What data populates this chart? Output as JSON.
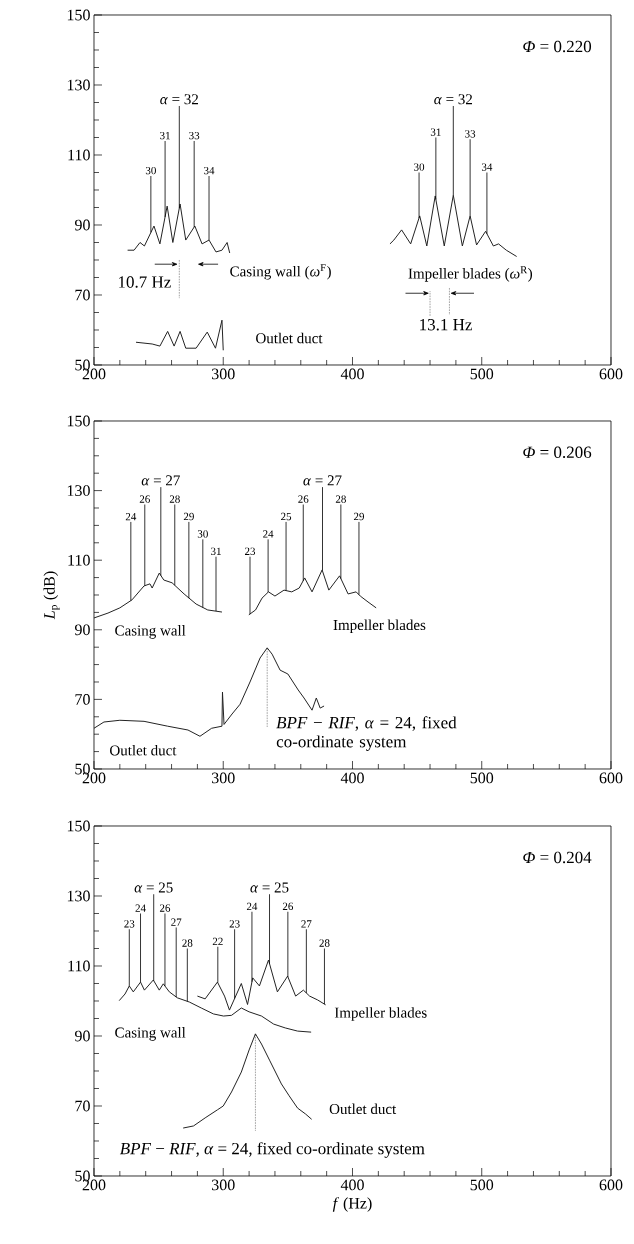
{
  "chart_data": [
    {
      "type": "line",
      "xlim": [
        200,
        600
      ],
      "ylim": [
        50,
        150
      ],
      "xticks": [
        200,
        300,
        400,
        500,
        600
      ],
      "yticks": [
        50,
        70,
        90,
        110,
        130,
        150
      ],
      "series": [
        {
          "name": "Casing wall (*ω*$^{F}$)",
          "color": "#222222",
          "x": [
            226,
            231,
            235.6,
            239,
            246.4,
            251,
            256.6,
            261,
            266.6,
            271,
            278,
            283.6,
            289,
            294.4,
            299,
            303,
            305
          ],
          "values": [
            82.8,
            82.8,
            85,
            84,
            89.7,
            84.6,
            95.4,
            85,
            96,
            85.7,
            89.7,
            84.6,
            85.7,
            82.3,
            82.8,
            85,
            82
          ]
        },
        {
          "name": "Impeller blades (*ω*$^{R}$)",
          "color": "#222222",
          "x": [
            429,
            432,
            438,
            445,
            452,
            457.5,
            464,
            471,
            478,
            485,
            491,
            496,
            503,
            509,
            513,
            519,
            527
          ],
          "values": [
            84.6,
            85.7,
            88.6,
            84.6,
            92.6,
            84,
            98.3,
            84,
            98.5,
            84,
            92.6,
            84.3,
            88.2,
            84,
            84.6,
            82.8,
            81
          ]
        },
        {
          "name": "Outlet duct",
          "color": "#222222",
          "x": [
            232.5,
            245,
            251,
            257,
            262,
            266.6,
            271,
            279,
            287.6,
            294,
            299,
            300
          ],
          "values": [
            56.5,
            56,
            55.4,
            59.6,
            55.4,
            59.6,
            54.8,
            54.8,
            59.4,
            54.8,
            62.8,
            54.2
          ]
        }
      ],
      "annotations": [
        {
          "text": "30",
          "x": 244,
          "y": 87.9
        },
        {
          "text": "31",
          "x": 255,
          "y": 92.3
        },
        {
          "text": "*α* = 32",
          "x": 266,
          "y": 94.8
        },
        {
          "text": "33",
          "x": 277.5,
          "y": 89.4
        },
        {
          "text": "34",
          "x": 289,
          "y": 85.7
        },
        {
          "text": "30",
          "x": 451.5,
          "y": 92
        },
        {
          "text": "31",
          "x": 464.5,
          "y": 97.3
        },
        {
          "text": "*α* = 32",
          "x": 478,
          "y": 98.5
        },
        {
          "text": "33",
          "x": 491,
          "y": 92.6
        },
        {
          "text": "34",
          "x": 504,
          "y": 87.5
        },
        "*Φ* = 0.220",
        "10.7 Hz",
        "13.1 Hz"
      ]
    },
    {
      "type": "line",
      "xlim": [
        200,
        600
      ],
      "ylim": [
        50,
        150
      ],
      "xticks": [
        200,
        300,
        400,
        500,
        600
      ],
      "yticks": [
        50,
        70,
        90,
        110,
        130,
        150
      ],
      "ylabel": "*L*$_{p}$ (dB)",
      "series": [
        {
          "name": "Casing wall",
          "color": "#222222",
          "x": [
            200,
            210.8,
            220,
            229.4,
            238.7,
            243.3,
            245,
            250.5,
            254,
            260.4,
            269.7,
            279,
            288,
            299
          ],
          "values": [
            93.4,
            94.8,
            96.3,
            98.6,
            102.6,
            103.2,
            102,
            106.3,
            104.3,
            103.5,
            100.3,
            97.4,
            95.7,
            95.1
          ]
        },
        {
          "name": "Impeller blades",
          "color": "#222222",
          "x": [
            319.8,
            325,
            330,
            335,
            340,
            347,
            353,
            358.8,
            363,
            368.7,
            376.5,
            381.7,
            390,
            396.6,
            402.8,
            406,
            412,
            418.3
          ],
          "values": [
            94.3,
            95.7,
            99.1,
            100.9,
            99.7,
            101.4,
            100.9,
            102,
            104.9,
            100.9,
            107.2,
            101.4,
            105.5,
            100.3,
            100.9,
            99.7,
            98,
            96.3
          ]
        },
        {
          "name": "Outlet duct",
          "color": "#222222",
          "x": [
            200,
            207.7,
            220,
            238.7,
            257,
            272.7,
            282,
            291,
            299,
            299.4,
            300.6,
            306.8,
            313,
            320.7,
            328.5,
            334,
            337.8,
            344,
            350,
            358,
            362.5,
            368.7,
            372,
            375,
            378
          ],
          "values": [
            61.7,
            63.5,
            64,
            63.7,
            62.3,
            61.2,
            59.4,
            61.7,
            62.3,
            72.1,
            62.8,
            65.8,
            68.6,
            75,
            81.9,
            84.8,
            83,
            78.4,
            77.3,
            72.7,
            70.4,
            66.9,
            70.4,
            67.5,
            68.1
          ]
        }
      ],
      "annotations": [
        {
          "text": "24",
          "x": 228.5,
          "y": 98.4
        },
        {
          "text": "26",
          "x": 239.3,
          "y": 102.7
        },
        {
          "text": "*α* = 27",
          "x": 251.7,
          "y": 105.6
        },
        {
          "text": "28",
          "x": 262.5,
          "y": 102.8
        },
        {
          "text": "29",
          "x": 273.4,
          "y": 99.1
        },
        {
          "text": "30",
          "x": 284.2,
          "y": 96.4
        },
        {
          "text": "31",
          "x": 294.4,
          "y": 95.4
        },
        {
          "text": "23",
          "x": 320.7,
          "y": 94.5
        },
        {
          "text": "24",
          "x": 334.7,
          "y": 100.8
        },
        {
          "text": "25",
          "x": 348.6,
          "y": 101.3
        },
        {
          "text": "26",
          "x": 361.9,
          "y": 104.1
        },
        {
          "text": "*α* = 27",
          "x": 376.8,
          "y": 107.1
        },
        {
          "text": "28",
          "x": 391,
          "y": 104.7
        },
        {
          "text": "29",
          "x": 405,
          "y": 100.1
        },
        "*Φ* = 0.206",
        {
          "text": "*BPF* − *RIF*, *α* = 24, fixed co-ordinate system",
          "x": 334,
          "y": 84.8
        }
      ]
    },
    {
      "type": "line",
      "xlim": [
        200,
        600
      ],
      "ylim": [
        50,
        150
      ],
      "xticks": [
        200,
        300,
        400,
        500,
        600
      ],
      "yticks": [
        50,
        70,
        90,
        110,
        130,
        150
      ],
      "xlabel": "*f* (Hz)",
      "series": [
        {
          "name": "Casing wall",
          "color": "#222222",
          "x": [
            219.5,
            224,
            227.3,
            230.4,
            236,
            239,
            245.9,
            250.5,
            253.6,
            258.3,
            264.5,
            273.8,
            283,
            292.4,
            300.2,
            306.4,
            314,
            320,
            329.6,
            339,
            348,
            357.5,
            368
          ],
          "values": [
            100.1,
            102,
            104.3,
            102.6,
            105.4,
            103.1,
            106,
            103.1,
            104.9,
            102.6,
            100.9,
            99.7,
            98,
            96.3,
            95.7,
            95.9,
            98,
            96.9,
            95.7,
            93.4,
            92.3,
            91.4,
            91.1
          ]
        },
        {
          "name": "Impeller blades",
          "color": "#222222",
          "x": [
            280,
            286,
            295.5,
            301,
            304.8,
            314,
            318.8,
            322.8,
            328,
            335,
            341.9,
            349.8,
            356,
            362,
            366.8,
            373,
            379.2
          ],
          "values": [
            101.4,
            100.6,
            105.4,
            101.4,
            97.4,
            105,
            99,
            106.6,
            104.3,
            111.7,
            102.6,
            107.1,
            101.4,
            103.1,
            101.4,
            100.3,
            98.9
          ]
        },
        {
          "name": "Outlet duct",
          "color": "#222222",
          "x": [
            269,
            277,
            286,
            295.5,
            300,
            306.4,
            314,
            320,
            324.9,
            329.6,
            335.8,
            345,
            351,
            357.5,
            363.7,
            368.4
          ],
          "values": [
            63.7,
            64.3,
            66.6,
            68.9,
            70,
            74,
            79.7,
            86,
            90.6,
            87.7,
            83.1,
            76.3,
            72.9,
            69.4,
            67.7,
            66.2
          ]
        }
      ],
      "annotations": [
        {
          "text": "23",
          "x": 227.3,
          "y": 104.3
        },
        {
          "text": "24",
          "x": 236,
          "y": 105.4
        },
        {
          "text": "*α* = 25",
          "x": 246.2,
          "y": 105.8
        },
        {
          "text": "26",
          "x": 254.9,
          "y": 104.3
        },
        {
          "text": "27",
          "x": 263.6,
          "y": 101.1
        },
        {
          "text": "28",
          "x": 272.2,
          "y": 99.9
        },
        {
          "text": "22",
          "x": 295.8,
          "y": 105.3
        },
        {
          "text": "23",
          "x": 308.8,
          "y": 100.7
        },
        {
          "text": "24",
          "x": 322.2,
          "y": 105.5
        },
        {
          "text": "*α* = 25",
          "x": 335.8,
          "y": 110.6
        },
        {
          "text": "26",
          "x": 350,
          "y": 106.9
        },
        {
          "text": "27",
          "x": 364.3,
          "y": 102.3
        },
        {
          "text": "28",
          "x": 378.3,
          "y": 99.1
        },
        "*Φ* = 0.204",
        {
          "text": "*BPF* − *RIF*, *α* = 24, fixed co-ordinate system",
          "x": 324.9,
          "y": 90.6
        }
      ]
    }
  ]
}
